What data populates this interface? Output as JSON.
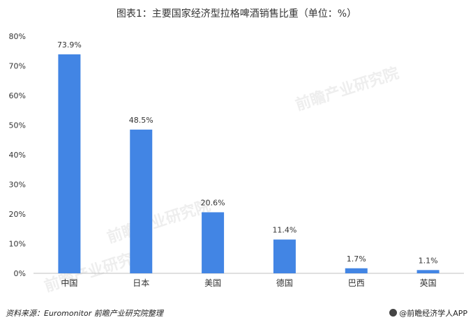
{
  "title": "图表1：主要国家经济型拉格啤酒销售比重（单位：%）",
  "source": "资料来源：Euromonitor  前瞻产业研究院整理",
  "brand": "@前瞻经济学人APP",
  "watermark": "前瞻产业研究院",
  "colors": {
    "bar": "#4285e4",
    "axis": "#bfbfbf",
    "text": "#333333"
  },
  "chart_data": {
    "type": "bar",
    "categories": [
      "中国",
      "日本",
      "美国",
      "德国",
      "巴西",
      "英国"
    ],
    "values": [
      73.9,
      48.5,
      20.6,
      11.4,
      1.7,
      1.1
    ],
    "data_labels": [
      "73.9%",
      "48.5%",
      "20.6%",
      "11.4%",
      "1.7%",
      "1.1%"
    ],
    "yticks": [
      "0%",
      "10%",
      "20%",
      "30%",
      "40%",
      "50%",
      "60%",
      "70%",
      "80%"
    ],
    "ylim": [
      0,
      80
    ],
    "grid": false,
    "legend": "none"
  }
}
